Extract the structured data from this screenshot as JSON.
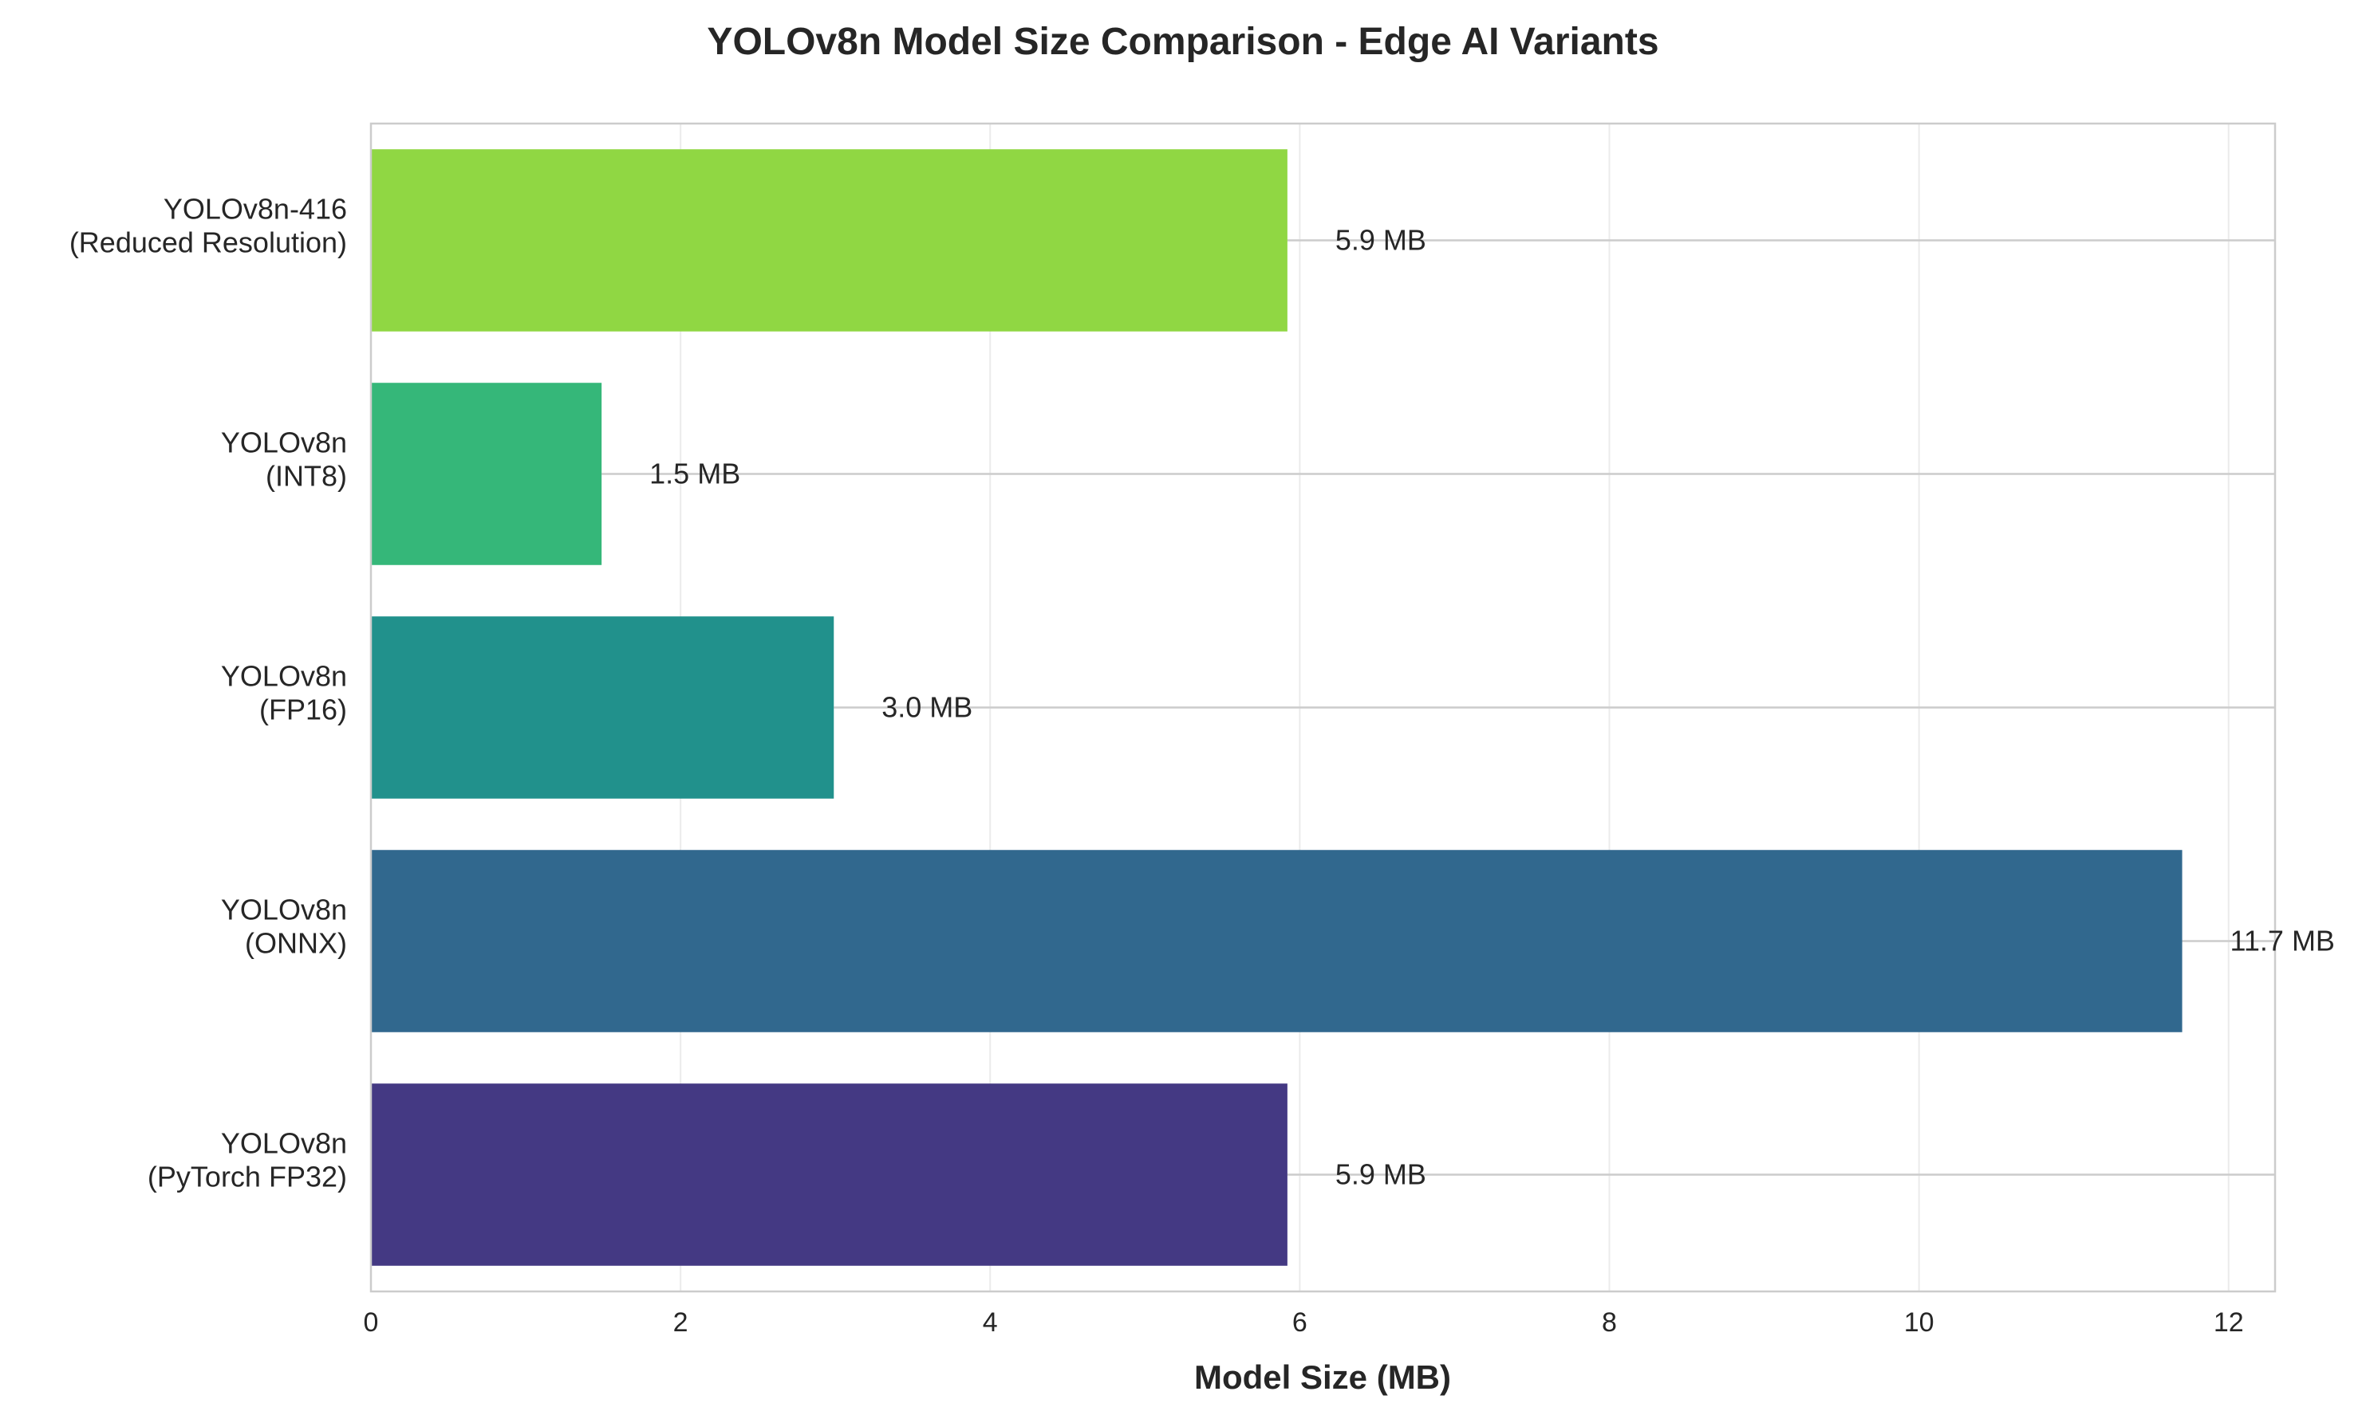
{
  "chart_data": {
    "type": "bar",
    "orientation": "horizontal",
    "title": "YOLOv8n Model Size Comparison - Edge AI Variants",
    "xlabel": "Model Size (MB)",
    "ylabel": "",
    "xlim": [
      0,
      12.3
    ],
    "xticks": [
      "0",
      "2",
      "4",
      "6",
      "8",
      "10",
      "12"
    ],
    "grid": true,
    "categories": [
      [
        "YOLOv8n",
        "(PyTorch FP32)"
      ],
      [
        "YOLOv8n",
        "(ONNX)"
      ],
      [
        "YOLOv8n",
        "(FP16)"
      ],
      [
        "YOLOv8n",
        "(INT8)"
      ],
      [
        "YOLOv8n-416",
        "(Reduced Resolution)"
      ]
    ],
    "values": [
      5.92,
      11.7,
      2.99,
      1.49,
      5.92
    ],
    "value_labels": [
      "5.9 MB",
      "11.7 MB",
      "3.0 MB",
      "1.5 MB",
      "5.9 MB"
    ],
    "colors": [
      "#443983",
      "#31688e",
      "#21918c",
      "#35b779",
      "#90d743"
    ]
  }
}
